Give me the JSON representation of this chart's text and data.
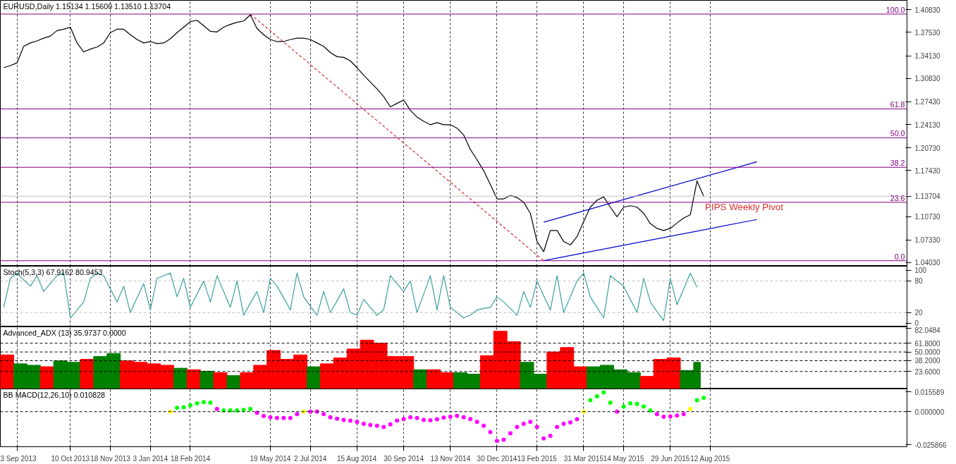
{
  "chart_data": [
    {
      "type": "line",
      "title": "EURUSD,Daily  1.15134 1.15600 1.13510 1.13704",
      "grid": "x",
      "tick_labels": "y",
      "categories": [
        null,
        null,
        null,
        null,
        null,
        null,
        null,
        null,
        null,
        null,
        null,
        null,
        null,
        null,
        null,
        null,
        null,
        null,
        null,
        null,
        null,
        null,
        null,
        null,
        null,
        null,
        null,
        null,
        null,
        null,
        null,
        null,
        null,
        null,
        null,
        null,
        null,
        null,
        null,
        null,
        null,
        null,
        null,
        null,
        null,
        null,
        null,
        null,
        null,
        null,
        null,
        null,
        null,
        null,
        null,
        null,
        null,
        null,
        null,
        null,
        null,
        null,
        null,
        null,
        null,
        null,
        null,
        null,
        null,
        null,
        null,
        null,
        null,
        null,
        null,
        null,
        null,
        null,
        null,
        null,
        null,
        null,
        null,
        null,
        null,
        null,
        null,
        null,
        null,
        null,
        null,
        null,
        null,
        null,
        null,
        null,
        null,
        null,
        null,
        null,
        null,
        null,
        null,
        null,
        null,
        null,
        null,
        null,
        null,
        null,
        null,
        null,
        null,
        null,
        null,
        null,
        null,
        null,
        null,
        null,
        null,
        null,
        null,
        null,
        null,
        null,
        null,
        null,
        null,
        null,
        null,
        null,
        null,
        null,
        null,
        null
      ],
      "ylim": [
        1.035,
        1.422
      ],
      "yticks": [
        {
          "value": 1.4083,
          "label": "1.40830"
        },
        {
          "value": 1.3753,
          "label": "1.37530"
        },
        {
          "value": 1.3413,
          "label": "1.34130"
        },
        {
          "value": 1.3083,
          "label": "1.30830"
        },
        {
          "value": 1.2743,
          "label": "1.27430"
        },
        {
          "value": 1.2413,
          "label": "1.24130"
        },
        {
          "value": 1.2073,
          "label": "1.20730"
        },
        {
          "value": 1.1743,
          "label": "1.17430"
        },
        {
          "value": 1.13704,
          "label": "1.13704"
        },
        {
          "value": 1.1073,
          "label": "1.10730"
        },
        {
          "value": 1.0733,
          "label": "1.07330"
        },
        {
          "value": 1.0403,
          "label": "1.04030"
        }
      ],
      "series": [
        {
          "color": "#000000",
          "values": [
            1.324,
            1.327,
            1.331,
            1.355,
            1.36,
            1.363,
            1.367,
            1.37,
            1.378,
            1.38,
            1.383,
            1.36,
            1.347,
            1.351,
            1.354,
            1.36,
            1.375,
            1.38,
            1.38,
            1.372,
            1.365,
            1.36,
            1.362,
            1.359,
            1.36,
            1.366,
            1.375,
            1.383,
            1.391,
            1.393,
            1.385,
            1.377,
            1.376,
            1.383,
            1.387,
            1.39,
            1.392,
            1.401,
            1.381,
            1.372,
            1.365,
            1.362,
            1.362,
            1.365,
            1.367,
            1.367,
            1.365,
            1.36,
            1.355,
            1.346,
            1.34,
            1.339,
            1.334,
            1.324,
            1.313,
            1.303,
            1.293,
            1.282,
            1.267,
            1.272,
            1.277,
            1.262,
            1.252,
            1.246,
            1.241,
            1.244,
            1.241,
            1.241,
            1.236,
            1.226,
            1.205,
            1.19,
            1.174,
            1.154,
            1.133,
            1.133,
            1.138,
            1.135,
            1.128,
            1.112,
            1.071,
            1.056,
            1.087,
            1.087,
            1.071,
            1.066,
            1.078,
            1.1,
            1.121,
            1.131,
            1.136,
            1.121,
            1.107,
            1.121,
            1.123,
            1.121,
            1.112,
            1.097,
            1.09,
            1.087,
            1.09,
            1.098,
            1.105,
            1.11,
            1.159,
            1.137,
            null,
            null,
            null,
            null,
            null,
            null,
            null,
            null,
            null,
            null,
            null,
            null,
            null,
            null,
            null,
            null,
            null,
            null,
            null,
            null,
            null,
            null,
            null,
            null,
            null,
            null,
            null,
            null,
            null,
            null
          ]
        },
        {
          "color": "#0000cd",
          "values": [
            null,
            null,
            null,
            null,
            null,
            null,
            null,
            null,
            null,
            null,
            null,
            null,
            null,
            null,
            null,
            null,
            null,
            null,
            null,
            null,
            null,
            null,
            null,
            null,
            null,
            null,
            null,
            null,
            null,
            null,
            null,
            null,
            null,
            null,
            null,
            null,
            null,
            null,
            null,
            null,
            null,
            null,
            null,
            null,
            null,
            null,
            null,
            null,
            null,
            null,
            null,
            null,
            null,
            null,
            null,
            null,
            null,
            null,
            null,
            null,
            null,
            null,
            null,
            null,
            null,
            null,
            null,
            null,
            null,
            null,
            null,
            null,
            null,
            null,
            null,
            null,
            null,
            null,
            null,
            null,
            null,
            1.099,
            null,
            null,
            null,
            null,
            null,
            null,
            null,
            null,
            null,
            null,
            null,
            null,
            null,
            null,
            null,
            null,
            null,
            null,
            null,
            null,
            null,
            null,
            null,
            null,
            null,
            null,
            null,
            null,
            null,
            null,
            null,
            1.187,
            null,
            null,
            null,
            null,
            null,
            null,
            null,
            null,
            null,
            null,
            null,
            null,
            null,
            null,
            null,
            null,
            null,
            null,
            null,
            null,
            null,
            null
          ]
        },
        {
          "color": "#0000cd",
          "values": [
            null,
            null,
            null,
            null,
            null,
            null,
            null,
            null,
            null,
            null,
            null,
            null,
            null,
            null,
            null,
            null,
            null,
            null,
            null,
            null,
            null,
            null,
            null,
            null,
            null,
            null,
            null,
            null,
            null,
            null,
            null,
            null,
            null,
            null,
            null,
            null,
            null,
            null,
            null,
            null,
            null,
            null,
            null,
            null,
            null,
            null,
            null,
            null,
            null,
            null,
            null,
            null,
            null,
            null,
            null,
            null,
            null,
            null,
            null,
            null,
            null,
            null,
            null,
            null,
            null,
            null,
            null,
            null,
            null,
            null,
            null,
            null,
            null,
            null,
            null,
            null,
            null,
            null,
            null,
            null,
            null,
            1.043,
            null,
            null,
            null,
            null,
            null,
            null,
            null,
            null,
            null,
            null,
            null,
            null,
            null,
            null,
            null,
            null,
            null,
            null,
            null,
            null,
            null,
            null,
            null,
            null,
            null,
            null,
            null,
            null,
            null,
            null,
            null,
            1.103,
            null,
            null,
            null,
            null,
            null,
            null,
            null,
            null,
            null,
            null,
            null,
            null,
            null,
            null,
            null,
            null,
            null,
            null,
            null,
            null,
            null,
            null
          ]
        },
        {
          "color": "#cc3333",
          "line_style": "dashed",
          "values": [
            null,
            null,
            null,
            null,
            null,
            null,
            null,
            null,
            null,
            null,
            null,
            null,
            null,
            null,
            null,
            null,
            null,
            null,
            null,
            null,
            null,
            null,
            null,
            null,
            null,
            null,
            null,
            null,
            null,
            null,
            null,
            null,
            null,
            null,
            null,
            null,
            null,
            1.402,
            null,
            null,
            null,
            null,
            null,
            null,
            null,
            null,
            null,
            null,
            null,
            null,
            null,
            null,
            null,
            null,
            null,
            null,
            null,
            null,
            null,
            null,
            null,
            null,
            null,
            null,
            null,
            null,
            null,
            null,
            null,
            null,
            null,
            null,
            null,
            null,
            null,
            null,
            null,
            null,
            null,
            null,
            null,
            1.043,
            null,
            null,
            null,
            null,
            null,
            null,
            null,
            null,
            null,
            null,
            null,
            null,
            null,
            null,
            null,
            null,
            null,
            null,
            null,
            null,
            null,
            null,
            null,
            null,
            null,
            null,
            null,
            null,
            null,
            null,
            null,
            null,
            null,
            null,
            null,
            null,
            null,
            null,
            null,
            null,
            null,
            null,
            null,
            null,
            null,
            null,
            null,
            null,
            null,
            null,
            null,
            null,
            null,
            null
          ]
        }
      ],
      "ref_lines": [
        {
          "axis": "y",
          "value": 1.402,
          "color": "#800080"
        },
        {
          "axis": "y",
          "value": 1.264,
          "color": "#800080"
        },
        {
          "axis": "y",
          "value": 1.222,
          "color": "#800080"
        },
        {
          "axis": "y",
          "value": 1.179,
          "color": "#800080"
        },
        {
          "axis": "y",
          "value": 1.128,
          "color": "#800080"
        },
        {
          "axis": "y",
          "value": 1.043,
          "color": "#800080"
        },
        {
          "axis": "y",
          "value": 1.13704,
          "color": "#c0c0c0"
        }
      ],
      "annotations": [
        "PIPS Weekly Pivot",
        {
          "text": "100.0",
          "y": 1.402
        },
        {
          "text": "61.8",
          "y": 1.264
        },
        {
          "text": "50.0",
          "y": 1.222
        },
        {
          "text": "38.2",
          "y": 1.179
        },
        {
          "text": "23.6",
          "y": 1.128
        },
        {
          "text": "0.0",
          "y": 1.043
        }
      ]
    },
    {
      "type": "line",
      "title": "Stoch(5,3,3) 67.9162 80.9453",
      "grid": "x",
      "tick_labels": "y",
      "categories": [
        null,
        null,
        null,
        null,
        null,
        null,
        null,
        null,
        null,
        null,
        null,
        null,
        null,
        null,
        null,
        null,
        null,
        null,
        null,
        null,
        null,
        null,
        null,
        null,
        null,
        null,
        null,
        null,
        null,
        null,
        null,
        null,
        null,
        null,
        null,
        null,
        null,
        null,
        null,
        null,
        null,
        null,
        null,
        null,
        null,
        null,
        null,
        null,
        null,
        null,
        null,
        null,
        null,
        null,
        null,
        null,
        null,
        null,
        null,
        null,
        null,
        null,
        null,
        null,
        null,
        null,
        null,
        null,
        null,
        null,
        null,
        null,
        null,
        null,
        null,
        null,
        null,
        null,
        null,
        null,
        null,
        null,
        null,
        null,
        null,
        null,
        null,
        null,
        null,
        null,
        null,
        null,
        null,
        null,
        null,
        null,
        null,
        null,
        null,
        null,
        null,
        null,
        null,
        null,
        null,
        null,
        null,
        null,
        null,
        null,
        null,
        null,
        null,
        null,
        null,
        null,
        null,
        null,
        null,
        null,
        null,
        null,
        null,
        null,
        null,
        null,
        null,
        null,
        null,
        null,
        null,
        null,
        null,
        null,
        null,
        null
      ],
      "ylim": [
        -7,
        108
      ],
      "yticks": [
        100,
        80,
        20,
        0
      ],
      "series": [
        {
          "color": "#3ba0a0",
          "values": [
            30,
            85,
            95,
            82,
            70,
            90,
            60,
            75,
            90,
            95,
            10,
            25,
            40,
            85,
            95,
            90,
            65,
            40,
            70,
            20,
            48,
            75,
            25,
            85,
            90,
            95,
            50,
            85,
            30,
            55,
            80,
            40,
            90,
            60,
            30,
            80,
            15,
            38,
            60,
            20,
            85,
            70,
            48,
            25,
            95,
            50,
            32,
            15,
            60,
            20,
            42,
            65,
            20,
            15,
            45,
            30,
            15,
            25,
            90,
            75,
            60,
            80,
            20,
            55,
            90,
            25,
            90,
            30,
            20,
            10,
            15,
            25,
            28,
            30,
            50,
            40,
            28,
            15,
            60,
            30,
            80,
            52,
            25,
            90,
            20,
            50,
            80,
            95,
            50,
            30,
            10,
            90,
            80,
            70,
            45,
            20,
            85,
            40,
            22,
            5,
            85,
            35,
            65,
            95,
            68,
            null,
            null,
            null,
            null,
            null,
            null,
            null,
            null,
            null,
            null,
            null,
            null,
            null,
            null,
            null,
            null,
            null,
            null,
            null,
            null,
            null,
            null,
            null,
            null,
            null,
            null,
            null,
            null,
            null,
            null,
            null
          ]
        }
      ],
      "ref_lines": [
        {
          "axis": "y",
          "value": 80,
          "color": "#c0c0c0",
          "line_style": "dashed"
        },
        {
          "axis": "y",
          "value": 20,
          "color": "#c0c0c0",
          "line_style": "dashed"
        }
      ]
    },
    {
      "type": "bar",
      "title": "Advanced_ADX (13) 35.9737 0.0000",
      "grid": "x",
      "tick_labels": "y",
      "categories": [
        null,
        null,
        null,
        null,
        null,
        null,
        null,
        null,
        null,
        null,
        null,
        null,
        null,
        null,
        null,
        null,
        null,
        null,
        null,
        null,
        null,
        null,
        null,
        null,
        null,
        null,
        null,
        null,
        null,
        null,
        null,
        null,
        null,
        null,
        null,
        null,
        null,
        null,
        null,
        null,
        null,
        null,
        null,
        null,
        null,
        null,
        null,
        null,
        null,
        null,
        null,
        null,
        null,
        null,
        null,
        null,
        null,
        null,
        null,
        null,
        null,
        null,
        null,
        null,
        null,
        null,
        null,
        null,
        null,
        null,
        null,
        null,
        null,
        null,
        null,
        null,
        null,
        null,
        null,
        null,
        null,
        null,
        null,
        null,
        null,
        null,
        null,
        null,
        null,
        null,
        null,
        null,
        null,
        null,
        null,
        null,
        null,
        null,
        null,
        null,
        null,
        null,
        null,
        null,
        null,
        null,
        null,
        null,
        null,
        null,
        null,
        null,
        null,
        null,
        null,
        null,
        null,
        null,
        null,
        null,
        null,
        null,
        null,
        null,
        null,
        null,
        null,
        null,
        null,
        null,
        null,
        null,
        null,
        null,
        null,
        null
      ],
      "ylim": [
        0,
        84
      ],
      "yticks": [
        {
          "value": 82.0484,
          "label": "82.0484"
        },
        {
          "value": 61.8,
          "label": "61.8000"
        },
        {
          "value": 50,
          "label": "50.0000"
        },
        {
          "value": 38.2,
          "label": "38.2000"
        },
        {
          "value": 23.6,
          "label": "23.6000"
        }
      ],
      "series": [
        {
          "values": [
            46,
            46,
            34,
            34,
            32,
            32,
            30,
            30,
            38,
            38,
            36,
            36,
            40,
            40,
            44,
            44,
            48,
            48,
            38,
            38,
            36,
            36,
            34,
            34,
            32,
            32,
            28,
            28,
            26,
            26,
            24,
            24,
            22,
            22,
            18,
            18,
            22,
            22,
            32,
            32,
            52,
            52,
            40,
            40,
            46,
            46,
            30,
            30,
            34,
            34,
            42,
            42,
            54,
            54,
            66,
            66,
            62,
            62,
            44,
            44,
            44,
            44,
            26,
            26,
            26,
            26,
            22,
            22,
            22,
            22,
            20,
            20,
            45,
            45,
            78,
            78,
            64,
            64,
            36,
            36,
            20,
            20,
            50,
            50,
            56,
            56,
            30,
            30,
            30,
            30,
            32,
            32,
            26,
            26,
            22,
            22,
            17,
            17,
            40,
            40,
            42,
            42,
            25,
            25,
            36,
            null,
            null,
            null,
            null,
            null,
            null,
            null,
            null,
            null,
            null,
            null,
            null,
            null,
            null,
            null,
            null,
            null,
            null,
            null,
            null,
            null,
            null,
            null,
            null,
            null,
            null,
            null,
            null,
            null,
            null,
            null
          ],
          "colors": [
            "#ff0000",
            "#ff0000",
            "#008000",
            "#008000",
            "#008000",
            "#008000",
            "#ff0000",
            "#ff0000",
            "#008000",
            "#008000",
            "#008000",
            "#008000",
            "#ff0000",
            "#ff0000",
            "#008000",
            "#008000",
            "#008000",
            "#008000",
            "#ff0000",
            "#ff0000",
            "#ff0000",
            "#ff0000",
            "#ff0000",
            "#ff0000",
            "#ff0000",
            "#ff0000",
            "#008000",
            "#008000",
            "#ff0000",
            "#ff0000",
            "#008000",
            "#008000",
            "#ff0000",
            "#ff0000",
            "#008000",
            "#008000",
            "#ff0000",
            "#ff0000",
            "#ff0000",
            "#ff0000",
            "#ff0000",
            "#ff0000",
            "#ff0000",
            "#ff0000",
            "#ff0000",
            "#ff0000",
            "#008000",
            "#008000",
            "#ff0000",
            "#ff0000",
            "#ff0000",
            "#ff0000",
            "#ff0000",
            "#ff0000",
            "#ff0000",
            "#ff0000",
            "#ff0000",
            "#ff0000",
            "#ff0000",
            "#ff0000",
            "#ff0000",
            "#ff0000",
            "#008000",
            "#008000",
            "#ff0000",
            "#ff0000",
            "#ff0000",
            "#ff0000",
            "#008000",
            "#008000",
            "#008000",
            "#008000",
            "#ff0000",
            "#ff0000",
            "#ff0000",
            "#ff0000",
            "#ff0000",
            "#ff0000",
            "#008000",
            "#008000",
            "#008000",
            "#008000",
            "#ff0000",
            "#ff0000",
            "#ff0000",
            "#ff0000",
            "#ff0000",
            "#ff0000",
            "#008000",
            "#008000",
            "#008000",
            "#008000",
            "#008000",
            "#008000",
            "#008000",
            "#008000",
            "#ff0000",
            "#ff0000",
            "#ff0000",
            "#ff0000",
            "#ff0000",
            "#ff0000",
            "#008000",
            "#008000",
            "#008000",
            null,
            null,
            null,
            null,
            null,
            null,
            null,
            null,
            null,
            null,
            null,
            null,
            null,
            null,
            null,
            null,
            null,
            null,
            null,
            null,
            null,
            null,
            null,
            null,
            null,
            null,
            null,
            null,
            null,
            null,
            null
          ]
        }
      ],
      "ref_lines": [
        {
          "axis": "y",
          "value": 61.8,
          "color": "#000000",
          "line_style": "dashed"
        },
        {
          "axis": "y",
          "value": 50,
          "color": "#000000",
          "line_style": "dashed"
        },
        {
          "axis": "y",
          "value": 38.2,
          "color": "#000000",
          "line_style": "dashed"
        },
        {
          "axis": "y",
          "value": 23.6,
          "color": "#000000",
          "line_style": "dashed"
        }
      ]
    },
    {
      "type": "scatter",
      "title": "BB MACD(12,26,10) 0.010828",
      "grid": "x",
      "marker": "circle",
      "categories": [
        null,
        null,
        "3 Sep 2013",
        null,
        null,
        null,
        null,
        null,
        null,
        null,
        "10 Oct 2013",
        null,
        null,
        null,
        null,
        null,
        "18 Nov 2013",
        null,
        null,
        null,
        null,
        null,
        "3 Jan 2014",
        null,
        null,
        null,
        null,
        null,
        "18 Feb 2014",
        null,
        null,
        null,
        null,
        null,
        null,
        null,
        null,
        null,
        null,
        null,
        "19 May 2014",
        null,
        null,
        null,
        null,
        null,
        "2 Jul 2014",
        null,
        null,
        null,
        null,
        null,
        null,
        "15 Aug 2014",
        null,
        null,
        null,
        null,
        null,
        null,
        "30 Sep 2014",
        null,
        null,
        null,
        null,
        null,
        null,
        "13 Nov 2014",
        null,
        null,
        null,
        null,
        null,
        null,
        "30 Dec 2014",
        null,
        null,
        null,
        null,
        null,
        "13 Feb 2015",
        null,
        null,
        null,
        null,
        null,
        null,
        "31 Mar 2015",
        null,
        null,
        null,
        null,
        null,
        "14 May 2015",
        null,
        null,
        null,
        null,
        null,
        null,
        "29 Jun 2015",
        null,
        null,
        null,
        null,
        null,
        "12 Aug 2015",
        null,
        null,
        null,
        null,
        null,
        null,
        null,
        null,
        null,
        null,
        null,
        null,
        null,
        null,
        null,
        null,
        null,
        null,
        null,
        null,
        null,
        null,
        null,
        null,
        null,
        null,
        null,
        null,
        null
      ],
      "ylim": [
        -0.0275,
        0.0178
      ],
      "yticks": [
        {
          "value": 0.015589,
          "label": "0.015589"
        },
        {
          "value": 0,
          "label": "0.000000"
        },
        {
          "value": -0.025866,
          "label": "-0.025866"
        }
      ],
      "series": [
        {
          "values": [
            null,
            null,
            null,
            null,
            null,
            null,
            null,
            null,
            null,
            null,
            null,
            null,
            null,
            null,
            null,
            null,
            null,
            null,
            null,
            null,
            null,
            null,
            null,
            null,
            null,
            0,
            0.003,
            0.0035,
            0.005,
            0.0065,
            0.0075,
            0.007,
            0.002,
            0.001,
            0.001,
            0.001,
            0.0013,
            0.002,
            -0.001,
            -0.0035,
            -0.0045,
            -0.005,
            -0.005,
            -0.005,
            -0.002,
            0,
            0,
            0,
            -0.002,
            -0.0045,
            -0.0055,
            -0.0065,
            -0.007,
            -0.008,
            -0.0095,
            -0.0105,
            -0.011,
            -0.012,
            -0.01,
            -0.007,
            -0.0058,
            -0.0045,
            -0.005,
            -0.0065,
            -0.0068,
            -0.006,
            -0.0047,
            -0.004,
            -0.0033,
            -0.0045,
            -0.0058,
            -0.008,
            -0.011,
            -0.016,
            -0.023,
            -0.022,
            -0.017,
            -0.012,
            -0.0095,
            -0.008,
            -0.012,
            -0.021,
            -0.019,
            -0.012,
            -0.0095,
            -0.0085,
            -0.006,
            0,
            0.009,
            0.012,
            0.015,
            0.007,
            0,
            0.004,
            0.0065,
            0.006,
            0.004,
            0.001,
            -0.002,
            -0.004,
            -0.0038,
            -0.003,
            -0.002,
            0.002,
            0.009,
            0.0108,
            null,
            null,
            null,
            null,
            null,
            null,
            null,
            null,
            null,
            null,
            null,
            null,
            null,
            null,
            null,
            null,
            null,
            null,
            null,
            null,
            null,
            null,
            null,
            null,
            null,
            null,
            null,
            null,
            null,
            null
          ],
          "colors": [
            null,
            null,
            null,
            null,
            null,
            null,
            null,
            null,
            null,
            null,
            null,
            null,
            null,
            null,
            null,
            null,
            null,
            null,
            null,
            null,
            null,
            null,
            null,
            null,
            null,
            "#ffff00",
            "#00ff00",
            "#00ff00",
            "#00ff00",
            "#00ff00",
            "#00ff00",
            "#00ff00",
            "#ff00ff",
            "#00ff00",
            "#00ff00",
            "#00ff00",
            "#00ff00",
            "#00ff00",
            "#ff00ff",
            "#ff00ff",
            "#ff00ff",
            "#ff00ff",
            "#ff00ff",
            "#ff00ff",
            "#ff00ff",
            "#ffff00",
            "#ff00ff",
            "#ff00ff",
            "#ff00ff",
            "#ff00ff",
            "#ff00ff",
            "#ff00ff",
            "#ff00ff",
            "#ff00ff",
            "#ff00ff",
            "#ff00ff",
            "#ff00ff",
            "#ff00ff",
            "#ff00ff",
            "#ff00ff",
            "#ff00ff",
            "#ff00ff",
            "#ff00ff",
            "#ff00ff",
            "#ff00ff",
            "#ff00ff",
            "#ff00ff",
            "#ff00ff",
            "#ff00ff",
            "#ff00ff",
            "#ff00ff",
            "#ff00ff",
            "#ff00ff",
            "#ff00ff",
            "#ff00ff",
            "#ff00ff",
            "#ff00ff",
            "#ff00ff",
            "#ff00ff",
            "#ff00ff",
            "#ff00ff",
            "#ff00ff",
            "#ff00ff",
            "#ff00ff",
            "#ff00ff",
            "#ff00ff",
            "#ff00ff",
            "#ffff00",
            "#00ff00",
            "#00ff00",
            "#00ff00",
            "#00ff00",
            "#ff00ff",
            "#00ff00",
            "#00ff00",
            "#00ff00",
            "#00ff00",
            "#00ff00",
            "#ff00ff",
            "#ff00ff",
            "#ff00ff",
            "#ff00ff",
            "#ff00ff",
            "#ffff00",
            "#00ff00",
            "#00ff00",
            null,
            null,
            null,
            null,
            null,
            null,
            null,
            null,
            null,
            null,
            null,
            null,
            null,
            null,
            null,
            null,
            null,
            null,
            null,
            null,
            null,
            null,
            null,
            null,
            null,
            null,
            null,
            null,
            null,
            null
          ]
        }
      ],
      "ref_lines": [
        {
          "axis": "y",
          "value": 0,
          "color": "#000000",
          "line_style": "dashed"
        }
      ]
    }
  ]
}
